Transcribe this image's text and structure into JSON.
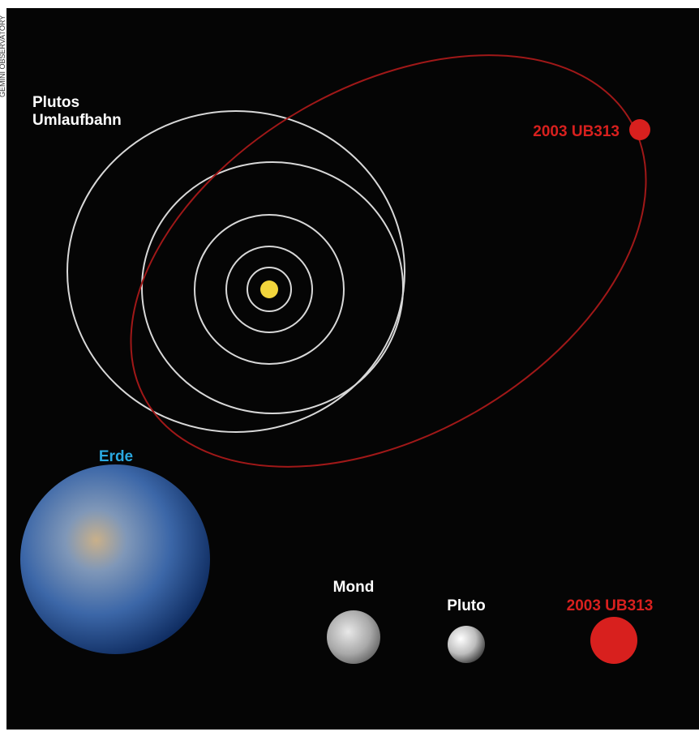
{
  "credit": "GEMINI OBSERVATORY",
  "orbit_label": {
    "line1": "Plutos",
    "line2": "Umlaufbahn"
  },
  "orbit_object_label": "2003 UB313",
  "comparison": {
    "earth": "Erde",
    "moon": "Mond",
    "pluto": "Pluto",
    "ub313": "2003 UB313"
  }
}
